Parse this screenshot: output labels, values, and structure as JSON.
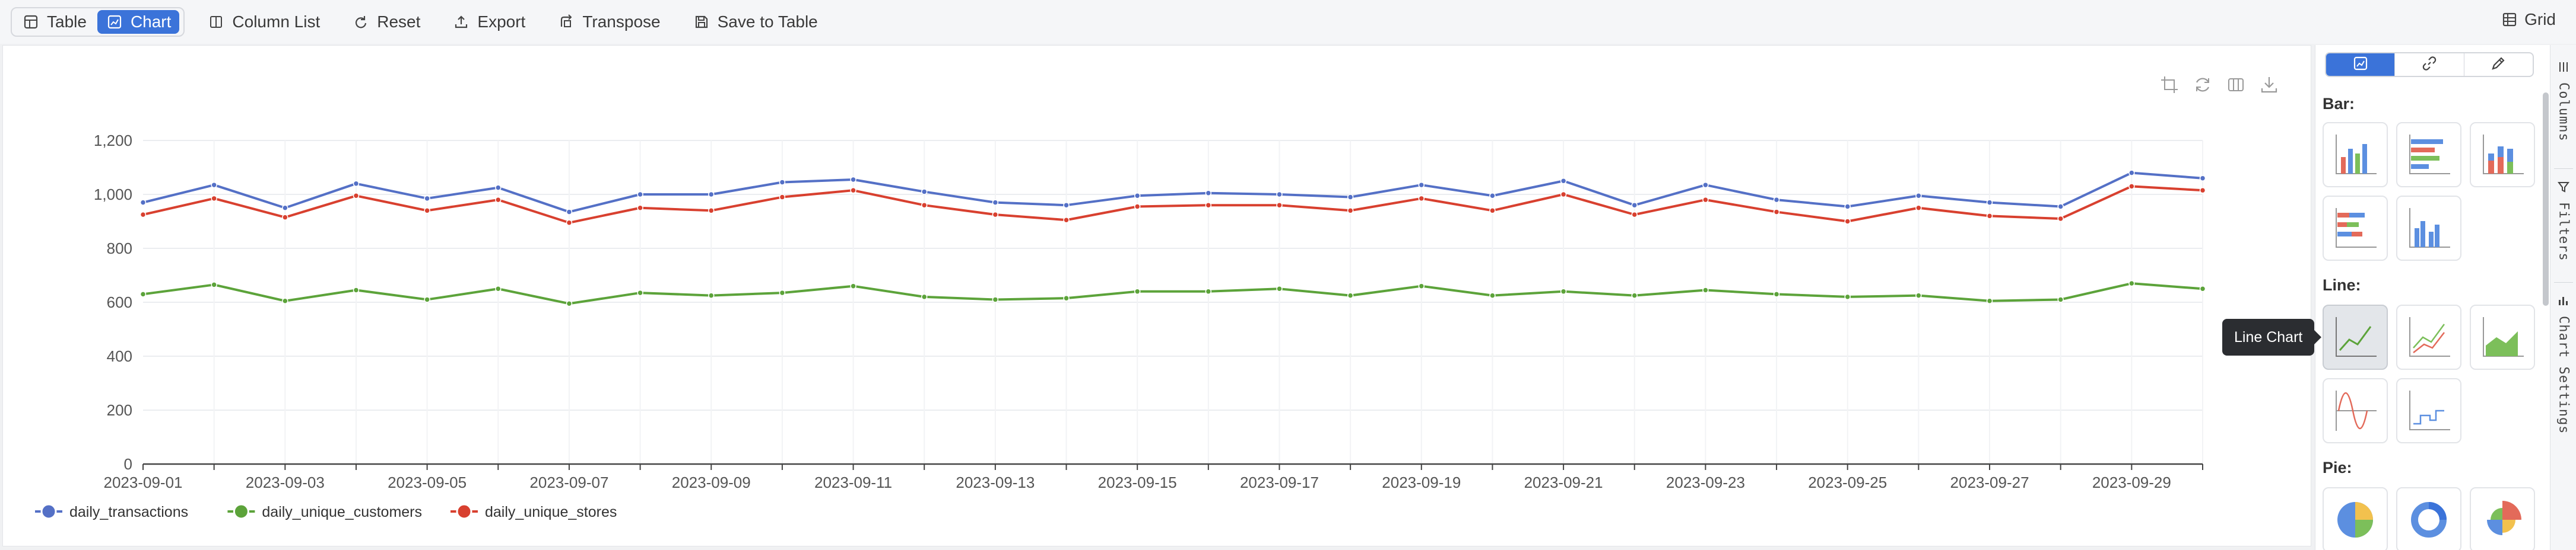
{
  "toolbar": {
    "view_toggle": [
      {
        "label": "Table",
        "icon": "table-icon",
        "active": false
      },
      {
        "label": "Chart",
        "icon": "chart-icon",
        "active": true
      }
    ],
    "actions": [
      {
        "label": "Column List",
        "icon": "column-list-icon"
      },
      {
        "label": "Reset",
        "icon": "reset-icon"
      },
      {
        "label": "Export",
        "icon": "export-icon"
      },
      {
        "label": "Transpose",
        "icon": "transpose-icon"
      },
      {
        "label": "Save to Table",
        "icon": "save-icon"
      }
    ],
    "grid_label": "Grid"
  },
  "chart_tools": [
    "crop-icon",
    "refresh-icon",
    "data-view-icon",
    "download-icon"
  ],
  "chart_data": {
    "type": "line",
    "title": "",
    "xlabel": "",
    "ylabel": "",
    "ylim": [
      0,
      1200
    ],
    "yticks": [
      0,
      200,
      400,
      600,
      800,
      1000,
      1200
    ],
    "ytick_labels": [
      "0",
      "200",
      "400",
      "600",
      "800",
      "1,000",
      "1,200"
    ],
    "grid": true,
    "legend_position": "bottom-left",
    "x": [
      "2023-09-01",
      "2023-09-02",
      "2023-09-03",
      "2023-09-04",
      "2023-09-05",
      "2023-09-06",
      "2023-09-07",
      "2023-09-08",
      "2023-09-09",
      "2023-09-10",
      "2023-09-11",
      "2023-09-12",
      "2023-09-13",
      "2023-09-14",
      "2023-09-15",
      "2023-09-16",
      "2023-09-17",
      "2023-09-18",
      "2023-09-19",
      "2023-09-20",
      "2023-09-21",
      "2023-09-22",
      "2023-09-23",
      "2023-09-24",
      "2023-09-25",
      "2023-09-26",
      "2023-09-27",
      "2023-09-28",
      "2023-09-29",
      "2023-09-30"
    ],
    "xtick_labels": [
      "2023-09-01",
      "2023-09-03",
      "2023-09-05",
      "2023-09-07",
      "2023-09-09",
      "2023-09-11",
      "2023-09-13",
      "2023-09-15",
      "2023-09-17",
      "2023-09-19",
      "2023-09-21",
      "2023-09-23",
      "2023-09-25",
      "2023-09-27",
      "2023-09-29"
    ],
    "series": [
      {
        "name": "daily_transactions",
        "color": "#5470c6",
        "values": [
          970,
          1035,
          950,
          1040,
          985,
          1025,
          935,
          1000,
          1000,
          1045,
          1055,
          1010,
          970,
          960,
          995,
          1005,
          1000,
          990,
          1035,
          995,
          1050,
          960,
          1035,
          980,
          955,
          995,
          970,
          955,
          1080,
          1060
        ]
      },
      {
        "name": "daily_unique_customers",
        "color": "#5ca33a",
        "values": [
          630,
          665,
          605,
          645,
          610,
          650,
          595,
          635,
          625,
          635,
          660,
          620,
          610,
          615,
          640,
          640,
          650,
          625,
          660,
          625,
          640,
          625,
          645,
          630,
          620,
          625,
          605,
          610,
          670,
          650
        ]
      },
      {
        "name": "daily_unique_stores",
        "color": "#d8402f",
        "values": [
          925,
          985,
          915,
          995,
          940,
          980,
          895,
          950,
          940,
          990,
          1015,
          960,
          925,
          905,
          955,
          960,
          960,
          940,
          985,
          940,
          1000,
          925,
          980,
          935,
          900,
          950,
          920,
          910,
          1030,
          1015
        ]
      }
    ]
  },
  "settings": {
    "mode_tabs": [
      {
        "icon": "chart-icon",
        "active": true
      },
      {
        "icon": "link-icon",
        "active": false
      },
      {
        "icon": "pencil-icon",
        "active": false
      }
    ],
    "sections": [
      {
        "title": "Bar:",
        "items": [
          "bar-chart-icon",
          "horizontal-bar-chart-icon",
          "stacked-bar-chart-icon",
          "stacked-horizontal-bar-chart-icon",
          "grouped-bar-chart-icon"
        ]
      },
      {
        "title": "Line:",
        "items": [
          "line-chart-icon",
          "multi-line-chart-icon",
          "area-chart-icon",
          "smooth-line-chart-icon",
          "step-line-chart-icon"
        ]
      },
      {
        "title": "Pie:",
        "items": [
          "pie-chart-icon",
          "donut-chart-icon",
          "rose-chart-icon"
        ]
      }
    ],
    "tooltip": "Line Chart"
  },
  "rail": [
    {
      "label": "Columns",
      "icon": "columns-icon"
    },
    {
      "label": "Filters",
      "icon": "filter-icon"
    },
    {
      "label": "Chart Settings",
      "icon": "chart-settings-icon"
    }
  ]
}
